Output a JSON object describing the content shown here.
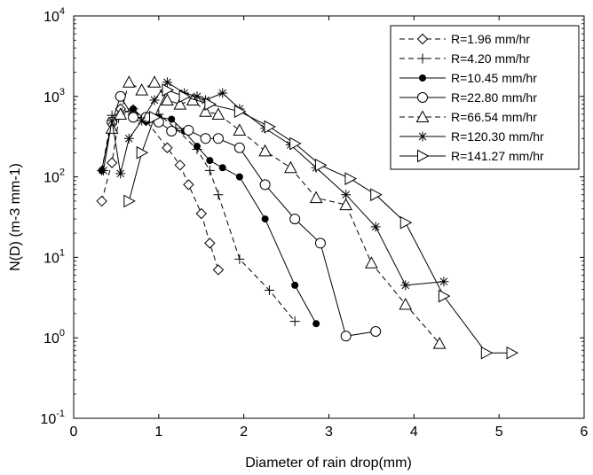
{
  "chart_data": {
    "type": "line",
    "xlabel": "Diameter of rain drop(mm)",
    "ylabel": "N(D) (m-3 mm-1)",
    "xlim": [
      0,
      6
    ],
    "ylim": [
      0.1,
      10000
    ],
    "yscale": "log",
    "grid": false,
    "legend_position": "top-right",
    "x_ticks": [
      "0",
      "1",
      "2",
      "3",
      "4",
      "5",
      "6"
    ],
    "y_ticks": [
      {
        "base": "10",
        "exp": "-1"
      },
      {
        "base": "10",
        "exp": "0"
      },
      {
        "base": "10",
        "exp": "1"
      },
      {
        "base": "10",
        "exp": "2"
      },
      {
        "base": "10",
        "exp": "3"
      },
      {
        "base": "10",
        "exp": "4"
      }
    ],
    "series": [
      {
        "name": "R=1.96 mm/hr",
        "marker": "diamond",
        "dash": "dashed",
        "x": [
          0.33,
          0.45,
          0.55,
          0.7,
          0.85,
          1.1,
          1.25,
          1.35,
          1.5,
          1.6,
          1.7
        ],
        "y": [
          50,
          150,
          700,
          600,
          500,
          230,
          140,
          80,
          35,
          15,
          7
        ]
      },
      {
        "name": "R=4.20 mm/hr",
        "marker": "plus",
        "dash": "dashed",
        "x": [
          0.33,
          0.45,
          0.55,
          0.7,
          0.85,
          1.0,
          1.2,
          1.45,
          1.6,
          1.7,
          1.95,
          2.3,
          2.6
        ],
        "y": [
          120,
          580,
          600,
          700,
          500,
          600,
          400,
          220,
          120,
          60,
          9.5,
          3.9,
          1.6
        ]
      },
      {
        "name": "R=10.45 mm/hr",
        "marker": "filled-circle",
        "dash": "solid",
        "x": [
          0.33,
          0.45,
          0.55,
          0.7,
          0.85,
          1.0,
          1.15,
          1.3,
          1.45,
          1.6,
          1.75,
          1.95,
          2.25,
          2.6,
          2.85
        ],
        "y": [
          120,
          500,
          600,
          700,
          500,
          550,
          520,
          370,
          240,
          160,
          130,
          100,
          30,
          4.5,
          1.5
        ]
      },
      {
        "name": "R=22.80 mm/hr",
        "marker": "open-circle",
        "dash": "solid",
        "x": [
          0.45,
          0.55,
          0.7,
          0.85,
          1.0,
          1.15,
          1.35,
          1.55,
          1.7,
          1.95,
          2.25,
          2.6,
          2.9,
          3.2,
          3.55
        ],
        "y": [
          480,
          1000,
          550,
          550,
          480,
          370,
          380,
          300,
          300,
          230,
          80,
          30,
          15,
          1.05,
          1.2
        ]
      },
      {
        "name": "R=66.54 mm/hr",
        "marker": "triangle-up",
        "dash": "dashed",
        "x": [
          0.45,
          0.55,
          0.65,
          0.8,
          0.95,
          1.1,
          1.25,
          1.4,
          1.55,
          1.7,
          1.95,
          2.25,
          2.55,
          2.85,
          3.2,
          3.5,
          3.9,
          4.3
        ],
        "y": [
          400,
          600,
          1500,
          1200,
          1500,
          900,
          800,
          900,
          650,
          600,
          380,
          210,
          130,
          55,
          45,
          8.5,
          2.6,
          0.85
        ]
      },
      {
        "name": "R=120.30 mm/hr",
        "marker": "asterisk",
        "dash": "solid",
        "x": [
          0.35,
          0.45,
          0.55,
          0.65,
          0.8,
          0.95,
          1.1,
          1.3,
          1.45,
          1.55,
          1.75,
          1.95,
          2.25,
          2.55,
          2.85,
          3.2,
          3.55,
          3.9,
          4.35
        ],
        "y": [
          120,
          500,
          110,
          300,
          500,
          900,
          1500,
          1100,
          1000,
          900,
          1100,
          700,
          400,
          250,
          130,
          60,
          24,
          4.5,
          5
        ]
      },
      {
        "name": "R=141.27 mm/hr",
        "marker": "triangle-right",
        "dash": "solid",
        "x": [
          0.65,
          0.8,
          0.95,
          1.1,
          1.3,
          1.6,
          1.95,
          2.3,
          2.6,
          2.9,
          3.25,
          3.55,
          3.9,
          4.35,
          4.85,
          5.15
        ],
        "y": [
          50,
          200,
          550,
          1200,
          1000,
          800,
          650,
          420,
          260,
          140,
          95,
          60,
          27,
          3.3,
          0.65,
          0.65
        ]
      }
    ]
  }
}
